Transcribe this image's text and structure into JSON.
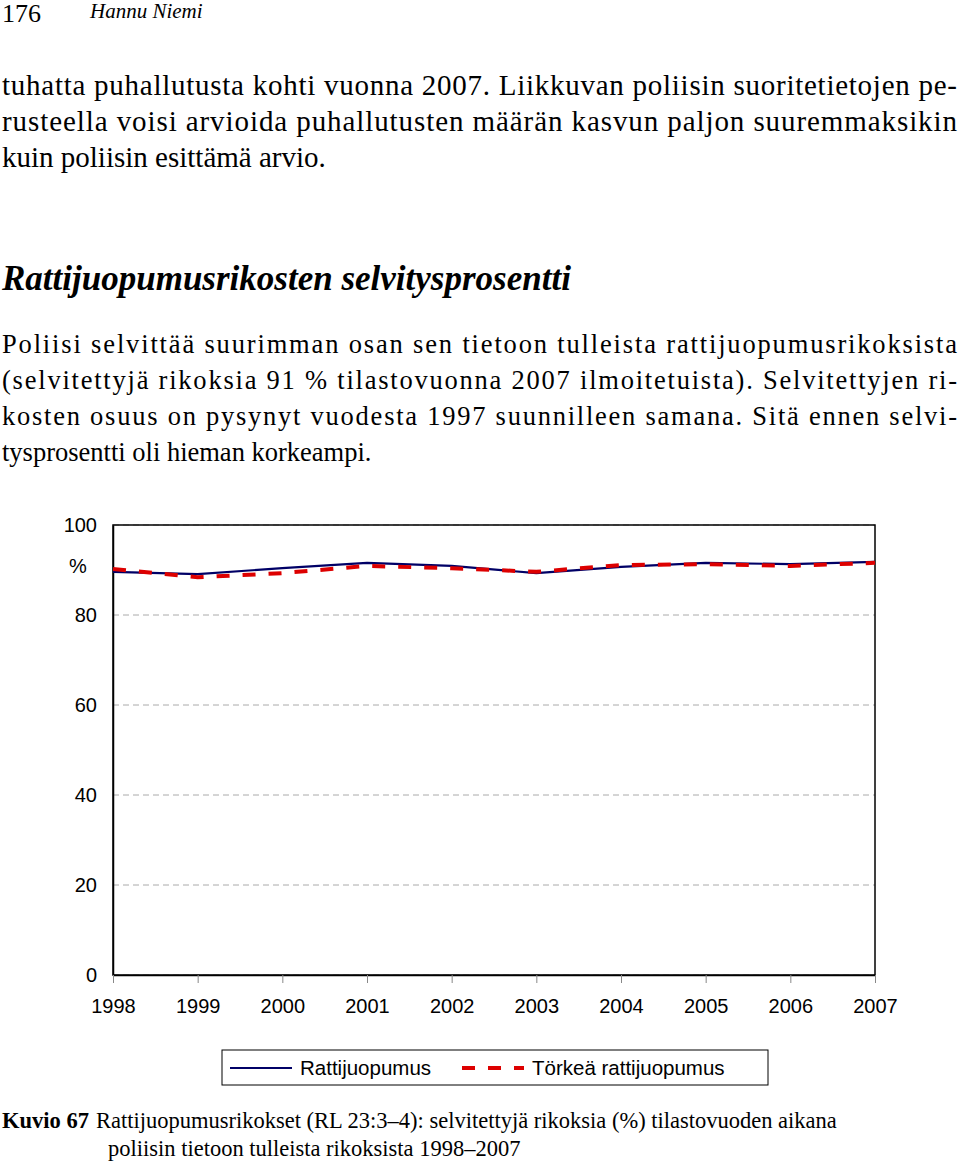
{
  "header": {
    "page": "176",
    "author": "Hannu Niemi"
  },
  "body": [
    {
      "type": "paragraph",
      "lines": [
        "tuhatta puhallutusta kohti vuonna 2007. Liikkuvan poliisin suoritetietojen pe-",
        "rusteella voisi arvioida puhallutusten määrän kasvun paljon suuremmaksikin",
        "kuin poliisin esittämä arvio."
      ]
    },
    {
      "type": "heading",
      "text": "Rattijuopumusrikosten selvitysprosentti"
    },
    {
      "type": "paragraph",
      "lines": [
        "Poliisi selvittää suurimman osan sen tietoon tulleista rattijuopumusrikoksista",
        "(selvitettyjä rikoksia 91 % tilastovuonna 2007 ilmoitetuista). Selvitettyjen ri-",
        "kosten osuus on pysynyt vuodesta 1997 suunnilleen samana. Sitä ennen selvi-",
        "tysprosentti oli hieman korkeampi."
      ]
    }
  ],
  "chart_data": {
    "type": "line",
    "y_label": "%",
    "x": [
      1998,
      1999,
      2000,
      2001,
      2002,
      2003,
      2004,
      2005,
      2006,
      2007
    ],
    "xlim": [
      1998,
      2007
    ],
    "xticks": [
      1998,
      1999,
      2000,
      2001,
      2002,
      2003,
      2004,
      2005,
      2006,
      2007
    ],
    "ylim": [
      0,
      100
    ],
    "yticks": [
      0,
      20,
      40,
      60,
      80,
      100
    ],
    "grid": true,
    "legend": "bottom",
    "series": [
      {
        "name": "Rattijuopumus",
        "color": "#000066",
        "line_style": "solid",
        "values": [
          89.6,
          89.1,
          90.4,
          91.6,
          90.9,
          89.3,
          90.7,
          91.6,
          91.3,
          91.8
        ]
      },
      {
        "name": "Törkeä rattijuopumus",
        "color": "#dd0000",
        "line_style": "dashed",
        "values": [
          90.2,
          88.4,
          89.3,
          90.9,
          90.4,
          89.6,
          91.1,
          91.3,
          90.9,
          91.6
        ]
      }
    ]
  },
  "figure": {
    "label": "Kuvio 67",
    "lines": [
      "Rattijuopumusrikokset (RL 23:3–4): selvitettyjä rikoksia (%) tilastovuoden aikana",
      "poliisin tietoon tulleista rikoksista 1998–2007"
    ]
  }
}
